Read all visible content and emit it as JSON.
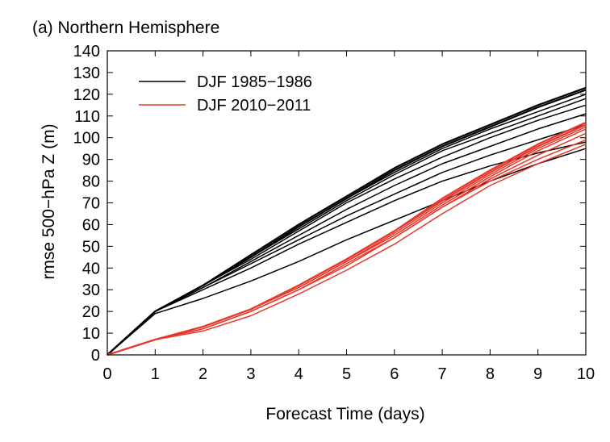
{
  "chart_data": {
    "type": "line",
    "title": "(a) Northern Hemisphere",
    "xlabel": "Forecast Time (days)",
    "ylabel": "rmse 500−hPa Z (m)",
    "xlim": [
      0,
      10
    ],
    "ylim": [
      0,
      140
    ],
    "xticks": [
      "0",
      "1",
      "2",
      "3",
      "4",
      "5",
      "6",
      "7",
      "8",
      "9",
      "10"
    ],
    "yticks": [
      "0",
      "10",
      "20",
      "30",
      "40",
      "50",
      "60",
      "70",
      "80",
      "90",
      "100",
      "110",
      "120",
      "130",
      "140"
    ],
    "grid": false,
    "legend_position": "top-left",
    "x": [
      0,
      1,
      2,
      3,
      4,
      5,
      6,
      7,
      8,
      9,
      10
    ],
    "groups": [
      {
        "label": "DJF 1985−1986",
        "color": "#000000",
        "series": [
          {
            "values": [
              0,
              20,
              32,
              46,
              60,
              73,
              86,
              97,
              106,
              115,
              123
            ]
          },
          {
            "values": [
              0,
              20,
              32,
              45,
              59,
              72,
              85,
              96,
              105,
              114,
              122
            ]
          },
          {
            "values": [
              0,
              20,
              32,
              45,
              59,
              72,
              84,
              95,
              104,
              112,
              120
            ]
          },
          {
            "values": [
              0,
              20,
              32,
              45,
              58,
              71,
              83,
              94,
              102,
              110,
              118
            ]
          },
          {
            "values": [
              0,
              20,
              32,
              44,
              57,
              70,
              81,
              91,
              100,
              108,
              115
            ]
          },
          {
            "values": [
              0,
              20,
              31,
              43,
              55,
              67,
              78,
              88,
              96,
              104,
              111
            ]
          },
          {
            "values": [
              0,
              20,
              31,
              42,
              53,
              64,
              74,
              84,
              92,
              99,
              106
            ]
          },
          {
            "values": [
              0,
              20,
              30,
              40,
              51,
              61,
              71,
              80,
              87,
              93,
              98
            ]
          },
          {
            "values": [
              0,
              19,
              26,
              34,
              43,
              53,
              62,
              71,
              80,
              88,
              95
            ]
          }
        ]
      },
      {
        "label": "DJF 2010−2011",
        "color": "#e8382c",
        "series": [
          {
            "values": [
              0,
              7,
              13,
              21,
              32,
              44,
              57,
              72,
              85,
              97,
              107
            ]
          },
          {
            "values": [
              0,
              7,
              13,
              21,
              32,
              44,
              57,
              71,
              84,
              96,
              106
            ]
          },
          {
            "values": [
              0,
              7,
              13,
              21,
              31,
              43,
              56,
              70,
              83,
              95,
              105
            ]
          },
          {
            "values": [
              0,
              7,
              13,
              21,
              31,
              43,
              55,
              69,
              82,
              94,
              104
            ]
          },
          {
            "values": [
              0,
              7,
              12,
              20,
              30,
              42,
              54,
              68,
              81,
              92,
              102
            ]
          },
          {
            "values": [
              0,
              7,
              12,
              20,
              30,
              41,
              54,
              68,
              80,
              90,
              99
            ]
          },
          {
            "values": [
              0,
              7,
              11,
              18,
              28,
              39,
              51,
              65,
              78,
              88,
              97
            ]
          }
        ]
      }
    ]
  }
}
